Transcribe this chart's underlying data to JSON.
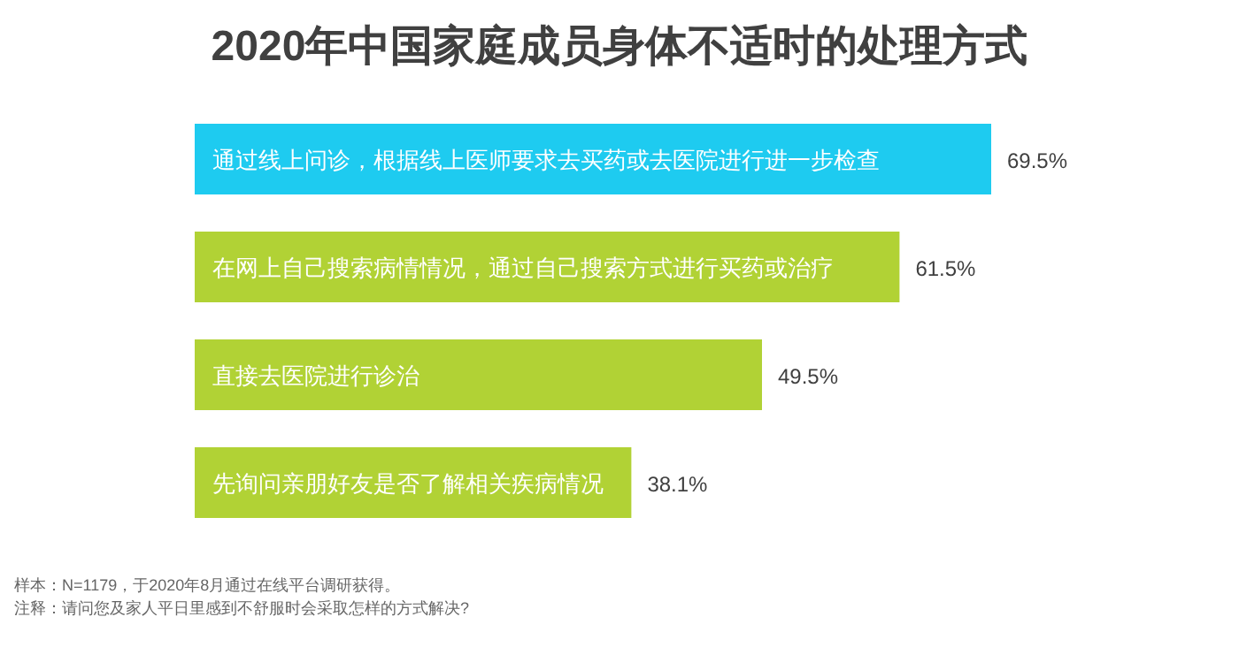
{
  "chart_data": {
    "type": "bar",
    "orientation": "horizontal",
    "title": "2020年中国家庭成员身体不适时的处理方式",
    "categories": [
      "通过线上问诊，根据线上医师要求去买药或去医院进行进一步检查",
      "在网上自己搜索病情情况，通过自己搜索方式进行买药或治疗",
      "直接去医院进行诊治",
      "先询问亲朋好友是否了解相关疾病情况"
    ],
    "values": [
      69.5,
      61.5,
      49.5,
      38.1
    ],
    "colors": [
      "#1ecbf0",
      "#b1d235",
      "#b1d235",
      "#b1d235"
    ],
    "value_labels": [
      "69.5%",
      "61.5%",
      "49.5%",
      "38.1%"
    ],
    "annotations": [
      "样本：N=1179，于2020年8月通过在线平台调研获得。",
      "注释：请问您及家人平日里感到不舒服时会采取怎样的方式解决?"
    ]
  }
}
